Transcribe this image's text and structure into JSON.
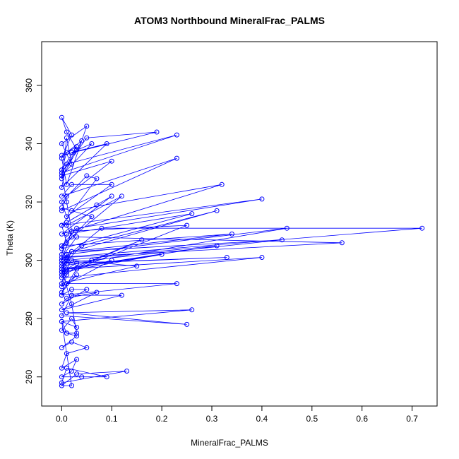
{
  "chart_data": {
    "type": "line",
    "title": "ATOM3 Northbound MineralFrac_PALMS",
    "xlabel": "MineralFrac_PALMS",
    "ylabel": "Theta (K)",
    "xlim": [
      -0.04,
      0.75
    ],
    "ylim": [
      250,
      375
    ],
    "xticks": [
      0,
      0.1,
      0.2,
      0.3,
      0.4,
      0.5,
      0.6,
      0.7
    ],
    "xtick_labels": [
      "0.0",
      "0.1",
      "0.2",
      "0.3",
      "0.4",
      "0.5",
      "0.6",
      "0.7"
    ],
    "yticks": [
      260,
      280,
      300,
      320,
      340,
      360
    ],
    "ytick_labels": [
      "260",
      "280",
      "300",
      "320",
      "340",
      "360"
    ],
    "grid": false,
    "legend": "none",
    "series": [
      {
        "color": "#0000ff",
        "marker": "open-circle",
        "x": [
          0.0,
          0.01,
          0.0,
          0.02,
          0.01,
          0.0,
          0.03,
          0.01,
          0.0,
          0.02,
          0.0,
          0.01,
          0.05,
          0.0,
          0.02,
          0.01,
          0.0,
          0.04,
          0.01,
          0.0,
          0.03,
          0.0,
          0.19,
          0.05,
          0.0,
          0.23,
          0.01,
          0.0,
          0.09,
          0.02,
          0.06,
          0.0,
          0.1,
          0.01,
          0.0,
          0.23,
          0.0,
          0.02,
          0.1,
          0.01,
          0.0,
          0.05,
          0.07,
          0.0,
          0.07,
          0.01,
          0.1,
          0.0,
          0.32,
          0.02,
          0.0,
          0.06,
          0.01,
          0.0,
          0.4,
          0.03,
          0.0,
          0.12,
          0.01,
          0.02,
          0.0,
          0.26,
          0.01,
          0.0,
          0.31,
          0.04,
          0.0,
          0.45,
          0.01,
          0.0,
          0.25,
          0.02,
          0.0,
          0.08,
          0.72,
          0.0,
          0.03,
          0.56,
          0.01,
          0.0,
          0.44,
          0.02,
          0.0,
          0.31,
          0.01,
          0.0,
          0.34,
          0.02,
          0.0,
          0.2,
          0.01,
          0.4,
          0.0,
          0.02,
          0.15,
          0.0,
          0.01,
          0.33,
          0.03,
          0.0,
          0.06,
          0.16,
          0.01,
          0.0,
          0.1,
          0.03,
          0.0,
          0.03,
          0.01,
          0.23,
          0.0,
          0.02,
          0.05,
          0.0,
          0.01,
          0.07,
          0.0,
          0.12,
          0.02,
          0.0,
          0.25,
          0.01,
          0.26,
          0.0,
          0.03,
          0.02,
          0.0,
          0.01,
          0.03,
          0.0,
          0.02,
          0.05,
          0.01,
          0.0,
          0.03,
          0.02,
          0.0,
          0.04,
          0.09,
          0.01,
          0.0,
          0.13,
          0.03,
          0.0,
          0.02,
          0.0,
          0.01,
          0.03,
          0.02,
          0.0,
          0.01
        ],
        "y": [
          288,
          295,
          300,
          310,
          320,
          330,
          338,
          344,
          349,
          343,
          335,
          326,
          346,
          340,
          333,
          342,
          328,
          341,
          337,
          331,
          339,
          336,
          344,
          342,
          330,
          343,
          333,
          325,
          340,
          337,
          340,
          329,
          334,
          322,
          317,
          335,
          322,
          326,
          326,
          315,
          320,
          329,
          328,
          312,
          319,
          313,
          322,
          309,
          326,
          317,
          318,
          315,
          306,
          312,
          321,
          311,
          305,
          322,
          312,
          308,
          304,
          316,
          309,
          302,
          317,
          305,
          298,
          311,
          302,
          295,
          312,
          310,
          300,
          311,
          311,
          301,
          308,
          306,
          301,
          299,
          307,
          303,
          297,
          305,
          300,
          305,
          309,
          303,
          296,
          302,
          297,
          301,
          294,
          300,
          298,
          292,
          299,
          301,
          299,
          296,
          300,
          307,
          296,
          291,
          300,
          297,
          289,
          295,
          292,
          292,
          288,
          290,
          290,
          285,
          287,
          289,
          283,
          288,
          288,
          281,
          278,
          282,
          283,
          279,
          277,
          280,
          276,
          275,
          274,
          270,
          272,
          270,
          268,
          263,
          266,
          262,
          260,
          260,
          260,
          263,
          258,
          262,
          261,
          257,
          257,
          279,
          275,
          275,
          285,
          297,
          300
        ]
      }
    ]
  }
}
